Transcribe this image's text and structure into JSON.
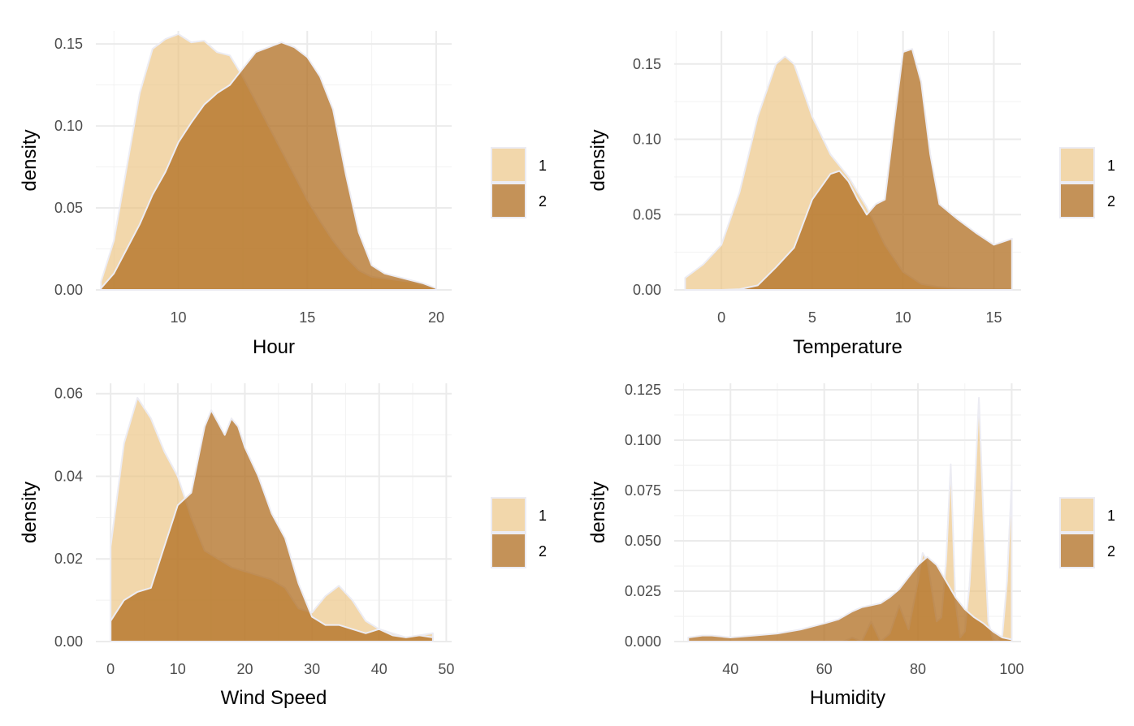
{
  "colors": {
    "group1": "#EBC27E",
    "group2": "#B06D20",
    "outline": "#ECECF3"
  },
  "chart_data": [
    {
      "type": "area",
      "xlabel": "Hour",
      "ylabel": "density",
      "xlim": [
        6.8,
        20.6
      ],
      "ylim": [
        0,
        0.158
      ],
      "xticks": [
        10,
        15,
        20
      ],
      "xtick_labels": [
        "10",
        "15",
        "20"
      ],
      "yticks": [
        0,
        0.05,
        0.1,
        0.15
      ],
      "ytick_labels": [
        "0.00",
        "0.05",
        "0.10",
        "0.15"
      ],
      "legend": [
        "1",
        "2"
      ],
      "series": [
        {
          "name": "1",
          "x": [
            7,
            7.5,
            8,
            8.5,
            9,
            9.5,
            10,
            10.5,
            11,
            11.5,
            12,
            12.5,
            13,
            13.5,
            14,
            14.5,
            15,
            15.5,
            16,
            16.5,
            17,
            17.5,
            18,
            18.5,
            19,
            19.5,
            20
          ],
          "y": [
            0.005,
            0.03,
            0.075,
            0.12,
            0.147,
            0.153,
            0.156,
            0.151,
            0.152,
            0.145,
            0.143,
            0.13,
            0.115,
            0.1,
            0.085,
            0.07,
            0.055,
            0.042,
            0.03,
            0.02,
            0.012,
            0.008,
            0.007,
            0.006,
            0.005,
            0.003,
            0.001
          ]
        },
        {
          "name": "2",
          "x": [
            7,
            7.5,
            8,
            8.5,
            9,
            9.5,
            10,
            10.5,
            11,
            11.5,
            12,
            12.5,
            13,
            13.5,
            14,
            14.5,
            15,
            15.5,
            16,
            16.5,
            17,
            17.5,
            18,
            18.5,
            19,
            19.5,
            20
          ],
          "y": [
            0.001,
            0.01,
            0.025,
            0.04,
            0.058,
            0.072,
            0.09,
            0.102,
            0.113,
            0.12,
            0.125,
            0.135,
            0.145,
            0.148,
            0.151,
            0.148,
            0.142,
            0.13,
            0.11,
            0.07,
            0.035,
            0.015,
            0.01,
            0.008,
            0.006,
            0.004,
            0.001
          ]
        }
      ]
    },
    {
      "type": "area",
      "xlabel": "Temperature",
      "ylabel": "density",
      "xlim": [
        -2.6,
        16.5
      ],
      "ylim": [
        0,
        0.172
      ],
      "xticks": [
        0,
        5,
        10,
        15
      ],
      "xtick_labels": [
        "0",
        "5",
        "10",
        "15"
      ],
      "yticks": [
        0,
        0.05,
        0.1,
        0.15
      ],
      "ytick_labels": [
        "0.00",
        "0.05",
        "0.10",
        "0.15"
      ],
      "legend": [
        "1",
        "2"
      ],
      "series": [
        {
          "name": "1",
          "x": [
            -2,
            -1,
            0,
            1,
            2,
            3,
            3.5,
            4,
            5,
            6,
            7,
            8,
            9,
            10,
            11,
            12,
            13,
            14,
            15,
            16
          ],
          "y": [
            0.008,
            0.017,
            0.03,
            0.065,
            0.115,
            0.15,
            0.155,
            0.15,
            0.115,
            0.09,
            0.075,
            0.055,
            0.03,
            0.012,
            0.004,
            0.002,
            0.001,
            0.0005,
            0.0002,
            0.0001
          ]
        },
        {
          "name": "2",
          "x": [
            -2,
            -1,
            0,
            1,
            2,
            3,
            4,
            5,
            6,
            6.5,
            7,
            7.5,
            8,
            8.5,
            9,
            9.5,
            10,
            10.5,
            11,
            11.5,
            12,
            13,
            14,
            15,
            15.5,
            16
          ],
          "y": [
            0,
            0,
            0,
            0.0005,
            0.003,
            0.015,
            0.028,
            0.06,
            0.077,
            0.079,
            0.072,
            0.06,
            0.05,
            0.057,
            0.06,
            0.11,
            0.158,
            0.16,
            0.138,
            0.09,
            0.057,
            0.047,
            0.038,
            0.03,
            0.032,
            0.034
          ]
        }
      ]
    },
    {
      "type": "area",
      "xlabel": "Wind Speed",
      "ylabel": "density",
      "xlim": [
        -2.2,
        50.8
      ],
      "ylim": [
        0,
        0.0625
      ],
      "xticks": [
        0,
        10,
        20,
        30,
        40,
        50
      ],
      "xtick_labels": [
        "0",
        "10",
        "20",
        "30",
        "40",
        "50"
      ],
      "yticks": [
        0,
        0.02,
        0.04,
        0.06
      ],
      "ytick_labels": [
        "0.00",
        "0.02",
        "0.04",
        "0.06"
      ],
      "legend": [
        "1",
        "2"
      ],
      "series": [
        {
          "name": "1",
          "x": [
            0,
            2,
            4,
            6,
            8,
            10,
            12,
            14,
            16,
            18,
            20,
            22,
            24,
            26,
            28,
            30,
            32,
            34,
            36,
            38,
            40,
            42,
            44,
            46,
            48
          ],
          "y": [
            0.023,
            0.048,
            0.059,
            0.054,
            0.046,
            0.04,
            0.03,
            0.022,
            0.02,
            0.018,
            0.017,
            0.016,
            0.015,
            0.013,
            0.008,
            0.007,
            0.011,
            0.0135,
            0.01,
            0.005,
            0.003,
            0.002,
            0.001,
            0.0015,
            0.002
          ]
        },
        {
          "name": "2",
          "x": [
            0,
            2,
            4,
            6,
            8,
            10,
            12,
            14,
            15,
            16,
            17,
            18,
            19,
            20,
            22,
            24,
            26,
            28,
            30,
            32,
            34,
            36,
            38,
            40,
            42,
            44,
            46,
            48
          ],
          "y": [
            0.005,
            0.01,
            0.012,
            0.013,
            0.023,
            0.033,
            0.036,
            0.052,
            0.056,
            0.053,
            0.05,
            0.054,
            0.052,
            0.047,
            0.04,
            0.031,
            0.025,
            0.014,
            0.006,
            0.004,
            0.004,
            0.003,
            0.002,
            0.003,
            0.0015,
            0.001,
            0.0015,
            0.001
          ]
        }
      ]
    },
    {
      "type": "area",
      "xlabel": "Humidity",
      "ylabel": "density",
      "xlim": [
        28,
        102
      ],
      "ylim": [
        0,
        0.1282
      ],
      "xticks": [
        40,
        60,
        80,
        100
      ],
      "xtick_labels": [
        "40",
        "60",
        "80",
        "100"
      ],
      "yticks": [
        0,
        0.025,
        0.05,
        0.075,
        0.1,
        0.125
      ],
      "ytick_labels": [
        "0.000",
        "0.025",
        "0.050",
        "0.075",
        "0.100",
        "0.125"
      ],
      "legend": [
        "1",
        "2"
      ],
      "series": [
        {
          "name": "1",
          "x": [
            60,
            64,
            66,
            68,
            70,
            72,
            74,
            76,
            78,
            80,
            81,
            82,
            83,
            84,
            85,
            86,
            87,
            88,
            89,
            90,
            91,
            92,
            93,
            94,
            95,
            96,
            97,
            98,
            99,
            100
          ],
          "y": [
            0,
            0,
            0.002,
            0,
            0.01,
            0,
            0.004,
            0.018,
            0.006,
            0.03,
            0.044,
            0.04,
            0.025,
            0.01,
            0.012,
            0.04,
            0.088,
            0.02,
            0.002,
            0.005,
            0.028,
            0.07,
            0.121,
            0.06,
            0.01,
            0.001,
            0,
            0.003,
            0.03,
            0.08
          ]
        },
        {
          "name": "2",
          "x": [
            31,
            34,
            36,
            40,
            45,
            50,
            55,
            60,
            63,
            66,
            68,
            70,
            72,
            74,
            76,
            78,
            80,
            82,
            84,
            86,
            88,
            90,
            92,
            94,
            96,
            98,
            100
          ],
          "y": [
            0.002,
            0.003,
            0.003,
            0.002,
            0.003,
            0.004,
            0.006,
            0.009,
            0.011,
            0.015,
            0.017,
            0.018,
            0.019,
            0.022,
            0.026,
            0.032,
            0.038,
            0.042,
            0.038,
            0.03,
            0.022,
            0.016,
            0.012,
            0.009,
            0.005,
            0.002,
            0.001
          ]
        }
      ]
    }
  ]
}
